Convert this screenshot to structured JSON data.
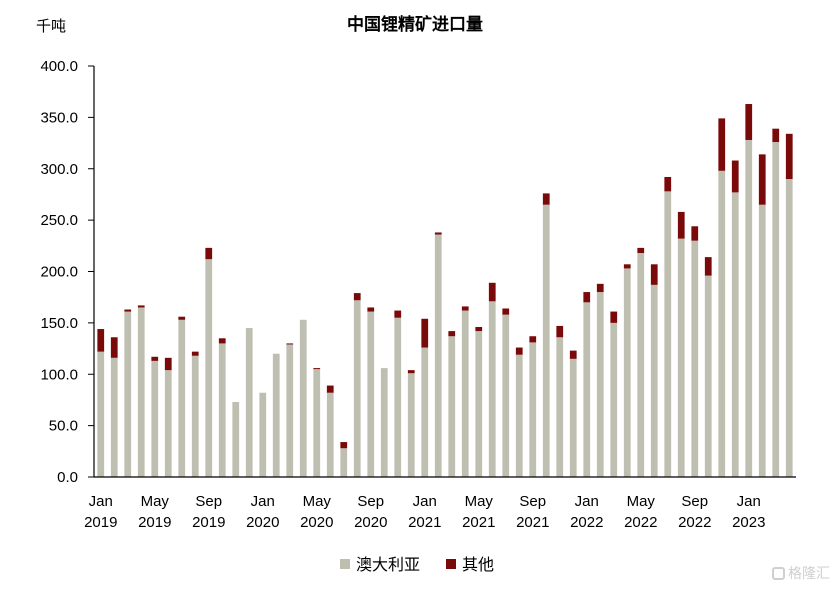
{
  "chart_data": {
    "type": "bar",
    "stacked": true,
    "title": "中国锂精矿进口量",
    "ylabel": "千吨",
    "ylim": [
      0,
      400
    ],
    "yticks": [
      "0.0",
      "50.0",
      "100.0",
      "150.0",
      "200.0",
      "250.0",
      "300.0",
      "350.0",
      "400.0"
    ],
    "xtick_labels": [
      {
        "index": 0,
        "month": "Jan",
        "year": "2019"
      },
      {
        "index": 4,
        "month": "May",
        "year": "2019"
      },
      {
        "index": 8,
        "month": "Sep",
        "year": "2019"
      },
      {
        "index": 12,
        "month": "Jan",
        "year": "2020"
      },
      {
        "index": 16,
        "month": "May",
        "year": "2020"
      },
      {
        "index": 20,
        "month": "Sep",
        "year": "2020"
      },
      {
        "index": 24,
        "month": "Jan",
        "year": "2021"
      },
      {
        "index": 28,
        "month": "May",
        "year": "2021"
      },
      {
        "index": 32,
        "month": "Sep",
        "year": "2021"
      },
      {
        "index": 36,
        "month": "Jan",
        "year": "2022"
      },
      {
        "index": 40,
        "month": "May",
        "year": "2022"
      },
      {
        "index": 44,
        "month": "Sep",
        "year": "2022"
      },
      {
        "index": 48,
        "month": "Jan",
        "year": "2023"
      }
    ],
    "legend_position": "bottom",
    "series": [
      {
        "name": "澳大利亚",
        "color": "#bfbfb1",
        "values": [
          122,
          116,
          161,
          165,
          113,
          104,
          153,
          118,
          212,
          130,
          73,
          145,
          82,
          120,
          129,
          153,
          105,
          82,
          28,
          172,
          161,
          106,
          155,
          101,
          126,
          236,
          137,
          162,
          142,
          171,
          158,
          119,
          131,
          265,
          136,
          115,
          170,
          180,
          150,
          203,
          218,
          187,
          278,
          232,
          230,
          196,
          298,
          277,
          328,
          265,
          326,
          290
        ]
      },
      {
        "name": "其他",
        "color": "#7a0a0a",
        "values": [
          22,
          20,
          2,
          2,
          4,
          12,
          3,
          4,
          11,
          5,
          0,
          0,
          0,
          0,
          1,
          0,
          1,
          7,
          6,
          7,
          4,
          0,
          7,
          3,
          28,
          2,
          5,
          4,
          4,
          18,
          6,
          7,
          6,
          11,
          11,
          8,
          10,
          8,
          11,
          4,
          5,
          20,
          14,
          26,
          14,
          18,
          51,
          31,
          35,
          49,
          13,
          44
        ]
      }
    ]
  },
  "watermark": "格隆汇"
}
